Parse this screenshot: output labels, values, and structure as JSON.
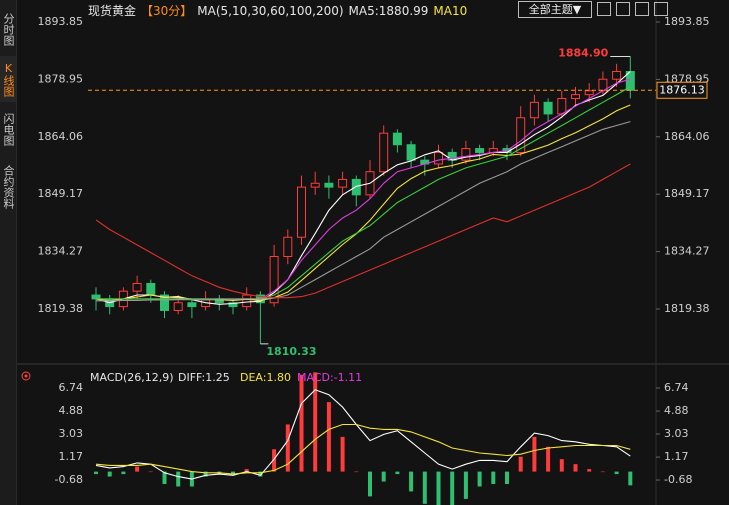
{
  "sidebar": [
    "分时图",
    "K线图",
    "闪电图",
    "合约资料"
  ],
  "header": {
    "title": "现货黄金",
    "period": "【30分】",
    "ma_params": "MA(5,10,30,60,100,200)",
    "ma5": "MA5:1880.99",
    "ma10": "MA10",
    "theme_button": "全部主题▼"
  },
  "chart_data": [
    {
      "type": "candlestick",
      "ylim": [
        1807.44,
        1896.96
      ],
      "yticks": [
        1893.85,
        1878.95,
        1864.06,
        1849.17,
        1834.27,
        1819.38
      ],
      "up_color": "#ff3b3b",
      "down_color": "#2fbf71",
      "ohlc": [
        [
          1823,
          1825,
          1819,
          1822
        ],
        [
          1822,
          1823,
          1818,
          1820
        ],
        [
          1820,
          1825,
          1819,
          1824
        ],
        [
          1824,
          1828,
          1822,
          1826
        ],
        [
          1826,
          1827,
          1821,
          1823
        ],
        [
          1823,
          1824,
          1817,
          1819
        ],
        [
          1819,
          1823,
          1818,
          1821
        ],
        [
          1821,
          1822,
          1817,
          1820
        ],
        [
          1820,
          1824,
          1819,
          1822
        ],
        [
          1822,
          1823,
          1819,
          1821
        ],
        [
          1821,
          1822,
          1818,
          1820
        ],
        [
          1820,
          1825,
          1819,
          1823
        ],
        [
          1823,
          1824,
          1810.33,
          1821
        ],
        [
          1821,
          1836,
          1820,
          1833
        ],
        [
          1833,
          1840,
          1831,
          1838
        ],
        [
          1838,
          1854,
          1836,
          1851
        ],
        [
          1851,
          1855,
          1849,
          1852
        ],
        [
          1852,
          1854,
          1848,
          1851
        ],
        [
          1851,
          1855,
          1849,
          1853
        ],
        [
          1853,
          1854,
          1846,
          1849
        ],
        [
          1849,
          1858,
          1848,
          1855
        ],
        [
          1855,
          1867,
          1854,
          1865
        ],
        [
          1865,
          1866,
          1860,
          1862
        ],
        [
          1862,
          1863,
          1856,
          1858
        ],
        [
          1858,
          1859,
          1854,
          1857
        ],
        [
          1857,
          1862,
          1856,
          1860
        ],
        [
          1860,
          1861,
          1856,
          1858
        ],
        [
          1858,
          1863,
          1857,
          1861
        ],
        [
          1861,
          1862,
          1858,
          1860
        ],
        [
          1860,
          1863,
          1859,
          1861
        ],
        [
          1861,
          1862,
          1858,
          1860
        ],
        [
          1860,
          1872,
          1859,
          1869
        ],
        [
          1869,
          1875,
          1867,
          1873
        ],
        [
          1873,
          1874,
          1868,
          1870
        ],
        [
          1870,
          1876,
          1869,
          1874
        ],
        [
          1874,
          1877,
          1872,
          1875
        ],
        [
          1875,
          1878,
          1873,
          1876
        ],
        [
          1876,
          1881,
          1875,
          1879
        ],
        [
          1879,
          1883,
          1877,
          1881
        ],
        [
          1881,
          1884.9,
          1874,
          1876.13
        ]
      ],
      "series": [
        {
          "color": "#ffffff",
          "values": [
            1822,
            1821,
            1822,
            1823,
            1823,
            1822.4,
            1822.6,
            1821.8,
            1821,
            1820.6,
            1820.8,
            1821.2,
            1821.4,
            1823.6,
            1827,
            1833.2,
            1839,
            1845,
            1849,
            1851.2,
            1852,
            1854.6,
            1856.8,
            1857.8,
            1859.4,
            1860.4,
            1858,
            1858.8,
            1859.2,
            1860,
            1860,
            1862.2,
            1864.6,
            1866.6,
            1869.2,
            1872.2,
            1873.6,
            1874.8,
            1877.8,
            1880.99
          ]
        },
        {
          "color": "#f5e43a",
          "values": [
            1822,
            1821.5,
            1822,
            1822.5,
            1823,
            1822.5,
            1822.3,
            1822,
            1821.8,
            1821.8,
            1821.6,
            1821.9,
            1821.6,
            1822.3,
            1823.8,
            1826.8,
            1829.9,
            1833,
            1836.1,
            1838.9,
            1842.4,
            1846.6,
            1850.7,
            1853.2,
            1855.1,
            1856,
            1856.6,
            1857.6,
            1858.3,
            1859.5,
            1859.2,
            1859.6,
            1860.7,
            1861.9,
            1863.6,
            1865.1,
            1866.9,
            1868.7,
            1870.8,
            1872.3
          ]
        },
        {
          "color": "#e03ce0",
          "values": [
            1822,
            1822,
            1822,
            1822,
            1822,
            1822,
            1822,
            1822,
            1822,
            1822,
            1822,
            1822,
            1822,
            1824,
            1827,
            1832,
            1836,
            1840,
            1843,
            1845,
            1848,
            1852,
            1855,
            1856,
            1857,
            1858,
            1858.5,
            1859,
            1859.5,
            1860,
            1860.5,
            1863,
            1866,
            1868,
            1870,
            1872,
            1874,
            1876,
            1878,
            1879
          ]
        },
        {
          "color": "#3ccf3c",
          "values": [
            1822,
            1822,
            1822,
            1822,
            1822,
            1822,
            1822,
            1822,
            1822,
            1822,
            1822,
            1822,
            1822,
            1823,
            1825,
            1828,
            1831,
            1834,
            1837,
            1839,
            1841,
            1844,
            1847,
            1849,
            1851,
            1853,
            1854.5,
            1856,
            1857,
            1858,
            1859,
            1861,
            1863,
            1865,
            1867,
            1869,
            1871,
            1873,
            1875,
            1877
          ]
        },
        {
          "color": "#9a9a9a",
          "values": [
            1821.5,
            1821.5,
            1821.6,
            1821.6,
            1821.7,
            1821.7,
            1821.8,
            1821.8,
            1821.8,
            1821.9,
            1821.9,
            1822,
            1822,
            1822.2,
            1823,
            1825,
            1827,
            1829,
            1831,
            1833,
            1835,
            1838,
            1840,
            1842,
            1844,
            1846,
            1848,
            1850,
            1852,
            1853.5,
            1855,
            1857,
            1858.5,
            1860,
            1861.5,
            1863,
            1864.5,
            1866,
            1867,
            1868
          ]
        },
        {
          "color": "#e0302a",
          "values": [
            1842.5,
            1840,
            1838,
            1836,
            1834,
            1832,
            1830,
            1828,
            1826.5,
            1825,
            1824,
            1823.2,
            1822.6,
            1822.3,
            1822.3,
            1822.6,
            1823.5,
            1825,
            1826.5,
            1828,
            1829.5,
            1831,
            1832.5,
            1834,
            1835.5,
            1837,
            1838.5,
            1840,
            1841.5,
            1843,
            1842,
            1843.5,
            1845,
            1846.5,
            1848,
            1849.5,
            1851,
            1853,
            1855,
            1857
          ]
        }
      ],
      "high_label": "1884.90",
      "low_label": "1810.33",
      "last_label": "1876.13",
      "last_color": "#ff9a1a"
    },
    {
      "type": "macd",
      "ylim": [
        -2.29,
        8.19
      ],
      "yticks": [
        6.74,
        4.88,
        3.03,
        1.17,
        -0.68
      ],
      "legend": [
        "MACD(26,12,9)",
        "DIFF:1.25",
        "DEA:1.80",
        "MACD:-1.11"
      ],
      "legend_colors": [
        "#e6e6e6",
        "#e6e6e6",
        "#f5e43a",
        "#e03ce0"
      ],
      "series": [
        {
          "color": "#ffffff",
          "values": [
            0.5,
            0.3,
            0.4,
            0.7,
            0.6,
            -0.1,
            -0.4,
            -0.6,
            -0.3,
            -0.2,
            -0.3,
            0.0,
            -0.3,
            1.0,
            2.5,
            5.5,
            6.6,
            6.2,
            5.2,
            3.8,
            2.5,
            3.0,
            3.3,
            2.4,
            1.5,
            0.6,
            0.2,
            0.6,
            0.9,
            0.9,
            0.8,
            2.0,
            3.1,
            2.9,
            2.5,
            2.4,
            2.2,
            2.1,
            2.0,
            1.25
          ]
        },
        {
          "color": "#f5e43a",
          "values": [
            0.6,
            0.5,
            0.5,
            0.5,
            0.6,
            0.4,
            0.2,
            0.0,
            -0.1,
            -0.1,
            -0.2,
            -0.1,
            -0.1,
            0.1,
            0.6,
            1.6,
            2.6,
            3.4,
            3.8,
            3.8,
            3.5,
            3.4,
            3.4,
            3.2,
            2.8,
            2.4,
            1.9,
            1.7,
            1.5,
            1.4,
            1.3,
            1.4,
            1.7,
            1.9,
            2.0,
            2.1,
            2.1,
            2.1,
            2.1,
            1.8
          ]
        }
      ],
      "histogram": {
        "up_color": "#ff3b3b",
        "down_color": "#2fbf71",
        "values": [
          -0.2,
          -0.4,
          -0.2,
          0.4,
          0,
          -1.0,
          -1.2,
          -1.2,
          -0.4,
          -0.2,
          -0.2,
          0.2,
          -0.4,
          1.8,
          3.8,
          7.8,
          8.0,
          5.6,
          2.8,
          0,
          -2.0,
          -0.8,
          -0.2,
          -1.6,
          -2.6,
          -3.6,
          -3.4,
          -2.2,
          -1.2,
          -1.0,
          -1.0,
          1.2,
          2.8,
          2.0,
          1.0,
          0.6,
          0.2,
          0,
          -0.2,
          -1.11
        ]
      }
    }
  ]
}
